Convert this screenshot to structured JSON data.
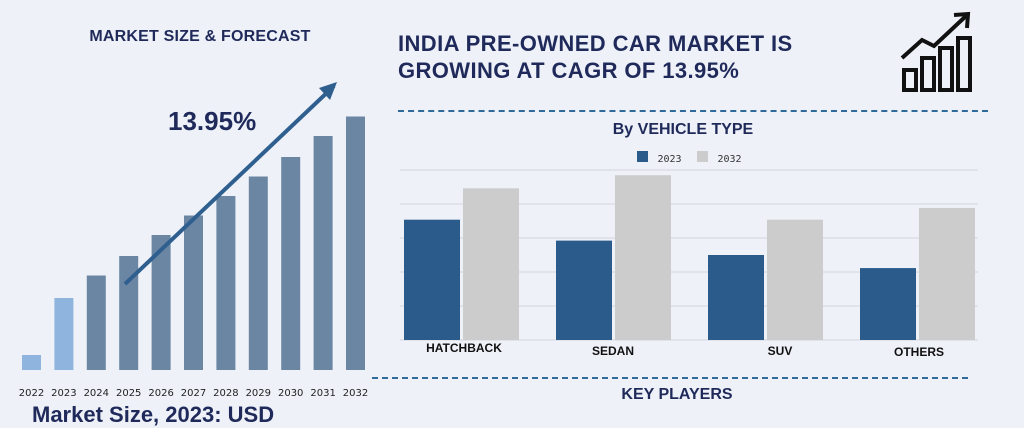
{
  "left_title": "MARKET SIZE & FORECAST",
  "cagr_label": "13.95%",
  "main_title_line1": "INDIA PRE-OWNED CAR MARKET IS",
  "main_title_line2": "GROWING AT CAGR OF 13.95%",
  "icon": "bar-growth-arrow-icon",
  "key_players": "KEY PLAYERS",
  "bottom_note": "Market Size, 2023: USD",
  "colors": {
    "dark_blue": "#2a5b8b",
    "light_gray": "#cccccc",
    "forecast_bar": "#6a86a3",
    "highlight_bar": "#8fb5df",
    "title": "#1f2a5a"
  },
  "chart_data": [
    {
      "type": "bar",
      "title": "MARKET SIZE & FORECAST",
      "categories": [
        "2022",
        "2023",
        "2024",
        "2025",
        "2026",
        "2027",
        "2028",
        "2029",
        "2030",
        "2031",
        "2032"
      ],
      "values": [
        1.0,
        4.8,
        6.3,
        7.6,
        9.0,
        10.3,
        11.6,
        12.9,
        14.2,
        15.6,
        16.9
      ],
      "ylim": [
        0,
        18
      ],
      "highlight": [
        "2022",
        "2023"
      ],
      "annotation": "13.95%",
      "grid": false
    },
    {
      "type": "bar",
      "title": "By VEHICLE TYPE",
      "categories": [
        "HATCHBACK",
        "SEDAN",
        "SUV",
        "OTHERS"
      ],
      "series": [
        {
          "name": "2023",
          "values": [
            9.2,
            7.6,
            6.5,
            5.5
          ]
        },
        {
          "name": "2032",
          "values": [
            11.6,
            12.6,
            9.2,
            10.1
          ]
        }
      ],
      "ylim": [
        0,
        13
      ],
      "legend": "top-center",
      "grid": true
    }
  ]
}
